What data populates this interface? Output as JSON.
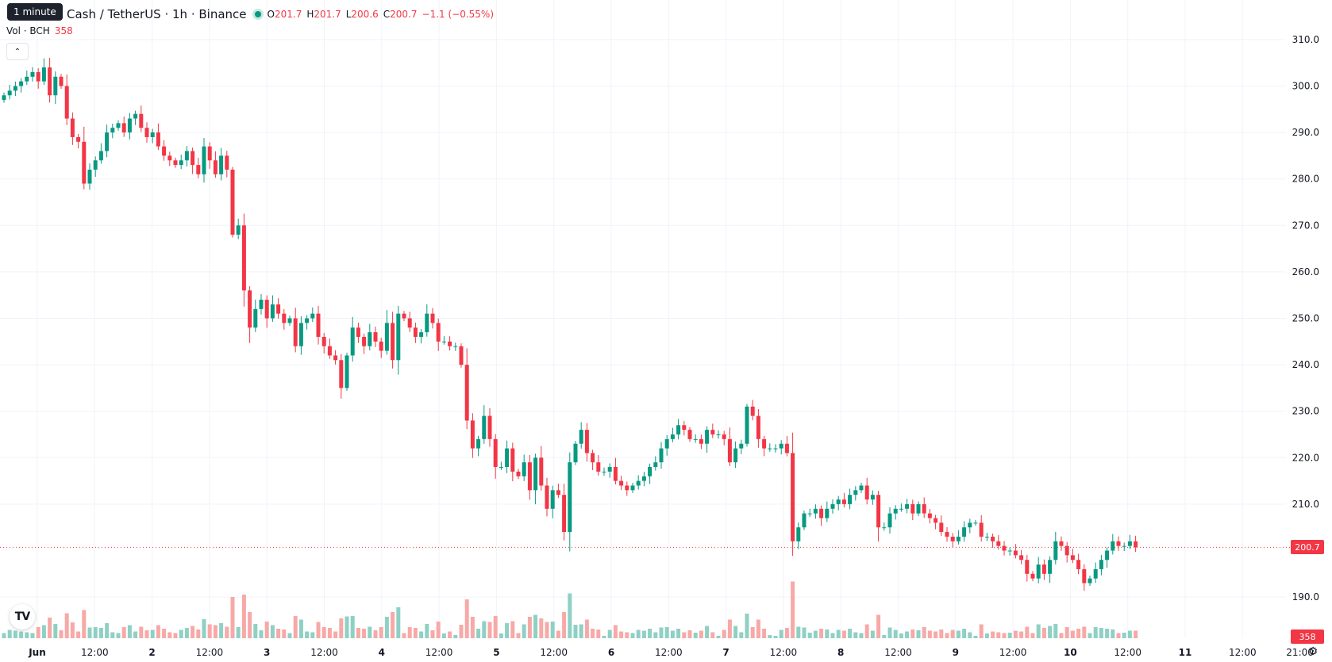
{
  "header": {
    "tooltip": "1 minute",
    "symbol_title": "Cash / TetherUS · 1h · Binance",
    "ohlc": {
      "o_label": "O",
      "o": "201.7",
      "h_label": "H",
      "h": "201.7",
      "l_label": "L",
      "l": "200.6",
      "c_label": "C",
      "c": "200.7",
      "change": "−1.1 (−0.55%)"
    },
    "volume_label": "Vol · BCH",
    "volume_value": "358",
    "collapse_icon": "chevron-up-icon"
  },
  "price_tag": "200.7",
  "volume_tag": "358",
  "logo": "TV",
  "colors": {
    "up": "#089981",
    "down": "#f23645",
    "up_vol": "#8fd0c4",
    "down_vol": "#f7a9a7",
    "grid": "#f0f3fa",
    "axis_text": "#131722"
  },
  "chart_data": {
    "type": "candlestick",
    "title": "Cash / TetherUS · 1h · Binance",
    "interval": "1h",
    "yaxis": {
      "ticks": [
        "310.0",
        "300.0",
        "290.0",
        "280.0",
        "270.0",
        "260.0",
        "250.0",
        "240.0",
        "230.0",
        "220.0",
        "210.0",
        "190.0"
      ],
      "range": [
        182,
        313
      ]
    },
    "xaxis": {
      "ticks": [
        "Jun",
        "12:00",
        "2",
        "12:00",
        "3",
        "12:00",
        "4",
        "12:00",
        "5",
        "12:00",
        "6",
        "12:00",
        "7",
        "12:00",
        "8",
        "12:00",
        "9",
        "12:00",
        "10",
        "12:00",
        "11",
        "12:00",
        "21:00"
      ]
    },
    "last_price": 200.7,
    "closes": [
      298,
      299,
      300,
      301,
      302,
      303,
      301,
      304,
      298,
      302,
      300,
      293,
      289,
      288,
      279,
      282,
      284,
      286,
      290,
      291,
      292,
      290,
      293,
      294,
      291,
      289,
      290,
      287,
      285,
      284,
      283,
      284,
      286,
      283,
      281,
      287,
      284,
      281,
      285,
      282,
      268,
      270,
      256,
      248,
      252,
      254,
      250,
      253,
      251,
      249,
      250,
      244,
      249,
      250,
      251,
      246,
      244,
      242,
      241,
      235,
      242,
      248,
      246,
      244,
      247,
      245,
      243,
      249,
      241,
      251,
      250,
      248,
      246,
      247,
      251,
      249,
      245,
      245,
      244,
      244,
      240,
      228,
      222,
      224,
      229,
      224,
      218,
      218,
      222,
      217,
      216,
      219,
      213,
      220,
      214,
      209,
      213,
      212,
      204,
      219,
      223,
      226,
      221,
      219,
      217,
      217,
      218,
      215,
      214,
      213,
      214,
      215,
      216,
      218,
      219,
      222,
      224,
      225,
      227,
      226,
      224,
      224,
      223,
      226,
      225,
      225,
      224,
      219,
      222,
      223,
      231,
      229,
      224,
      222,
      222,
      222,
      223,
      221,
      202,
      205,
      208,
      208,
      209,
      207,
      209,
      210,
      211,
      210,
      212,
      213,
      214,
      211,
      212,
      205,
      205,
      208,
      209,
      209,
      210,
      208,
      210,
      208,
      207,
      206,
      204,
      203,
      202,
      203,
      205,
      206,
      206,
      203,
      203,
      202,
      201,
      200,
      200,
      199,
      198,
      195,
      194,
      197,
      195,
      198,
      202,
      201,
      199,
      198,
      196,
      193,
      194,
      196,
      198,
      200,
      202,
      201,
      201,
      202,
      200.7
    ]
  }
}
